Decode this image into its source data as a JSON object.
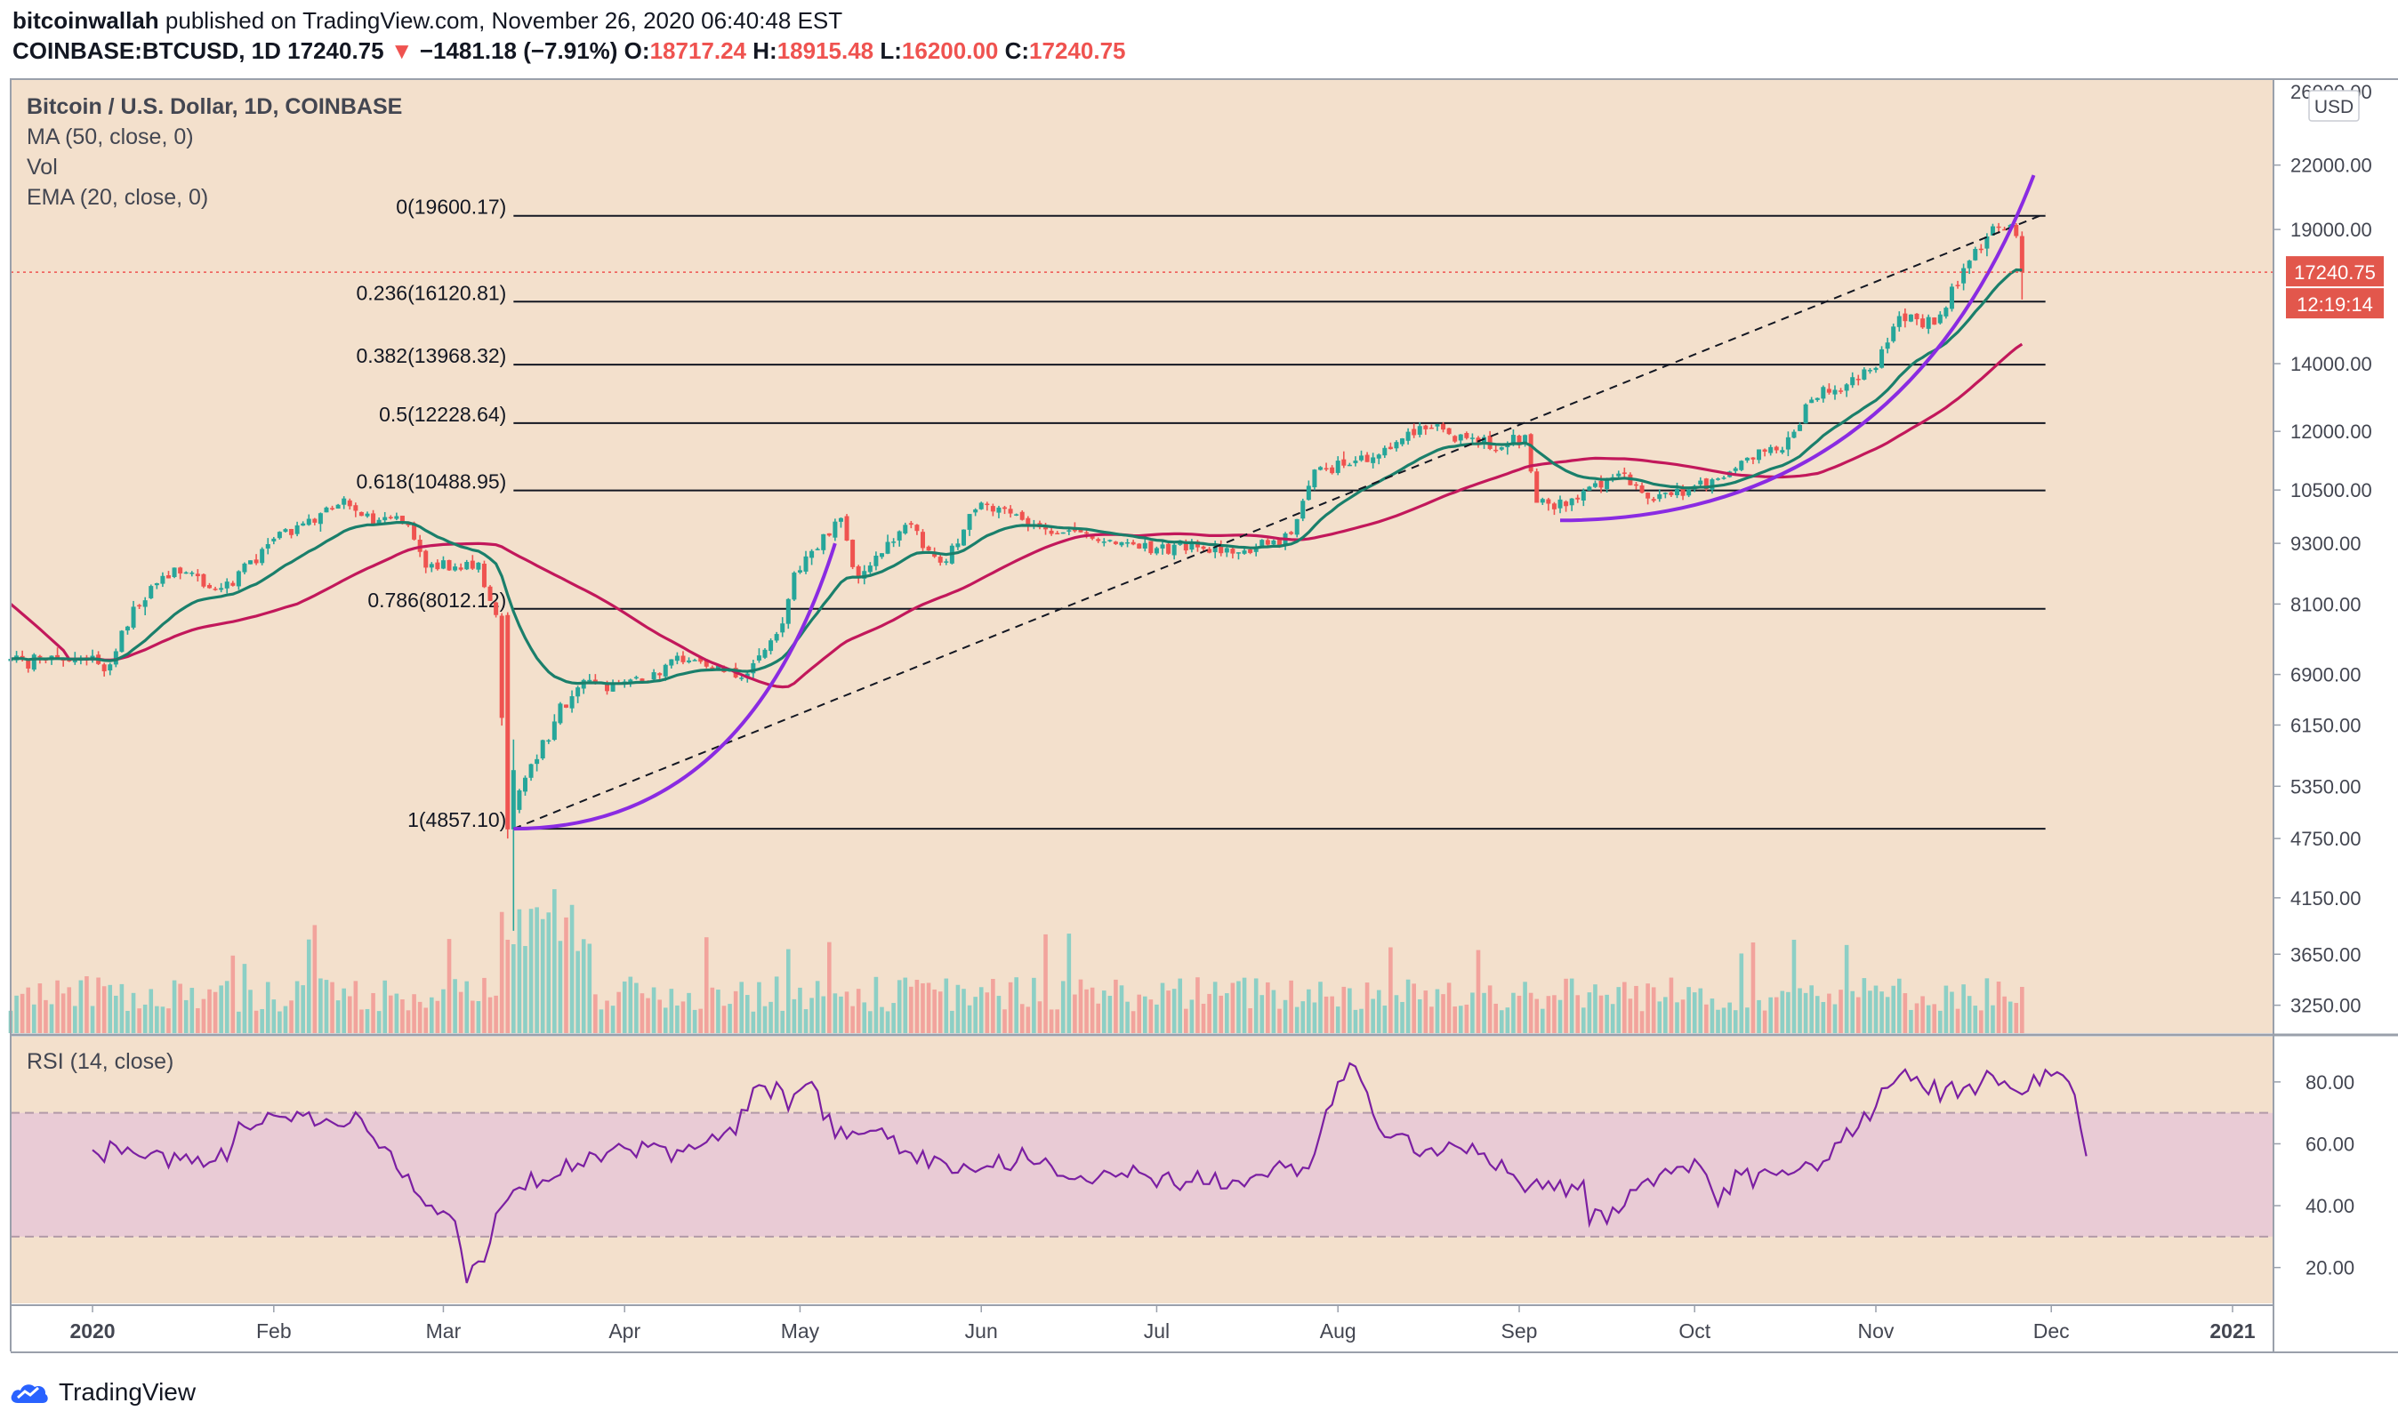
{
  "header": {
    "author": "bitcoinwallah",
    "published": " published on TradingView.com, November 26, 2020 06:40:48 EST",
    "symbol": "COINBASE:BTCUSD, 1D",
    "last": "17240.75",
    "change": "−1481.18 (−7.91%)",
    "o_label": "O:",
    "o": "18717.24",
    "h_label": "H:",
    "h": "18915.48",
    "l_label": "L:",
    "l": "16200.00",
    "c_label": "C:",
    "c": "17240.75"
  },
  "legend": {
    "title": "Bitcoin / U.S. Dollar, 1D, COINBASE",
    "ma": "MA (50, close, 0)",
    "vol": "Vol",
    "ema": "EMA (20, close, 0)"
  },
  "price_axis": {
    "currency": "USD",
    "ticks": [
      "26000.00",
      "22000.00",
      "19000.00",
      "17240.75",
      "14000.00",
      "12000.00",
      "10500.00",
      "9300.00",
      "8100.00",
      "6900.00",
      "6150.00",
      "5350.00",
      "4750.00",
      "4150.00",
      "3650.00",
      "3250.00"
    ],
    "tick_values": [
      26000,
      22000,
      19000,
      14000,
      12000,
      10500,
      9300,
      8100,
      6900,
      6150,
      5350,
      4750,
      4150,
      3650,
      3250
    ],
    "last_price_label": "17240.75",
    "countdown_label": "12:19:14"
  },
  "fib_levels": [
    {
      "label": "0(19600.17)",
      "value": 19600.17
    },
    {
      "label": "0.236(16120.81)",
      "value": 16120.81
    },
    {
      "label": "0.382(13968.32)",
      "value": 13968.32
    },
    {
      "label": "0.5(12228.64)",
      "value": 12228.64
    },
    {
      "label": "0.618(10488.95)",
      "value": 10488.95
    },
    {
      "label": "0.786(8012.12)",
      "value": 8012.12
    },
    {
      "label": "1(4857.10)",
      "value": 4857.1
    }
  ],
  "rsi": {
    "label": "RSI (14, close)",
    "ticks": [
      "80.00",
      "60.00",
      "40.00",
      "20.00"
    ],
    "tick_values": [
      80,
      60,
      40,
      20
    ],
    "band": [
      30,
      70
    ],
    "control": [
      [
        0,
        58
      ],
      [
        8,
        56
      ],
      [
        20,
        54
      ],
      [
        30,
        70
      ],
      [
        40,
        68
      ],
      [
        46,
        68
      ],
      [
        52,
        52
      ],
      [
        57,
        40
      ],
      [
        62,
        35
      ],
      [
        63,
        26
      ],
      [
        64,
        15
      ],
      [
        66,
        22
      ],
      [
        72,
        45
      ],
      [
        80,
        50
      ],
      [
        90,
        60
      ],
      [
        100,
        58
      ],
      [
        110,
        63
      ],
      [
        113,
        78
      ],
      [
        120,
        76
      ],
      [
        123,
        80
      ],
      [
        127,
        62
      ],
      [
        135,
        65
      ],
      [
        140,
        57
      ],
      [
        145,
        55
      ],
      [
        150,
        52
      ],
      [
        160,
        55
      ],
      [
        170,
        48
      ],
      [
        180,
        50
      ],
      [
        190,
        47
      ],
      [
        200,
        50
      ],
      [
        208,
        52
      ],
      [
        213,
        80
      ],
      [
        216,
        85
      ],
      [
        220,
        65
      ],
      [
        228,
        58
      ],
      [
        236,
        60
      ],
      [
        243,
        50
      ],
      [
        250,
        45
      ],
      [
        255,
        48
      ],
      [
        256,
        34
      ],
      [
        262,
        40
      ],
      [
        268,
        50
      ],
      [
        274,
        55
      ],
      [
        278,
        40
      ],
      [
        282,
        50
      ],
      [
        290,
        50
      ],
      [
        297,
        55
      ],
      [
        300,
        65
      ],
      [
        305,
        72
      ],
      [
        310,
        84
      ],
      [
        314,
        76
      ],
      [
        318,
        80
      ],
      [
        322,
        76
      ],
      [
        325,
        82
      ],
      [
        330,
        76
      ],
      [
        335,
        82
      ],
      [
        338,
        80
      ],
      [
        341,
        56
      ]
    ]
  },
  "time_axis": {
    "labels": [
      {
        "t": "2020",
        "d": 0,
        "bold": true
      },
      {
        "t": "Feb",
        "d": 31
      },
      {
        "t": "Mar",
        "d": 60
      },
      {
        "t": "Apr",
        "d": 91
      },
      {
        "t": "May",
        "d": 121
      },
      {
        "t": "Jun",
        "d": 152
      },
      {
        "t": "Jul",
        "d": 182
      },
      {
        "t": "Aug",
        "d": 213
      },
      {
        "t": "Sep",
        "d": 244
      },
      {
        "t": "Oct",
        "d": 274
      },
      {
        "t": "Nov",
        "d": 305
      },
      {
        "t": "Dec",
        "d": 335
      },
      {
        "t": "2021",
        "d": 366,
        "bold": true
      }
    ]
  },
  "chart_data": {
    "type": "candlestick",
    "title": "Bitcoin / U.S. Dollar, 1D, COINBASE",
    "price_scale": "log",
    "ylim": [
      3000,
      27000
    ],
    "x_range": [
      "2019-12-18",
      "2021-01-08"
    ],
    "candles_control": [
      {
        "date": "2019-12-18",
        "close": 7150
      },
      {
        "date": "2020-01-01",
        "close": 7200
      },
      {
        "date": "2020-01-03",
        "close": 6950
      },
      {
        "date": "2020-01-08",
        "close": 8050
      },
      {
        "date": "2020-01-15",
        "close": 8800
      },
      {
        "date": "2020-01-23",
        "close": 8400
      },
      {
        "date": "2020-02-01",
        "close": 9400
      },
      {
        "date": "2020-02-13",
        "close": 10300
      },
      {
        "date": "2020-02-16",
        "close": 9900
      },
      {
        "date": "2020-02-24",
        "close": 9700
      },
      {
        "date": "2020-02-27",
        "close": 8800
      },
      {
        "date": "2020-03-07",
        "close": 8900
      },
      {
        "date": "2020-03-10",
        "close": 7900
      },
      {
        "date": "2020-03-12",
        "close": 4850
      },
      {
        "date": "2020-03-14",
        "close": 5300
      },
      {
        "date": "2020-03-20",
        "close": 6200
      },
      {
        "date": "2020-03-24",
        "close": 6700
      },
      {
        "date": "2020-04-05",
        "close": 6800
      },
      {
        "date": "2020-04-10",
        "close": 7200
      },
      {
        "date": "2020-04-16",
        "close": 7000
      },
      {
        "date": "2020-04-21",
        "close": 6850
      },
      {
        "date": "2020-04-28",
        "close": 7750
      },
      {
        "date": "2020-04-30",
        "close": 8700
      },
      {
        "date": "2020-05-08",
        "close": 9850
      },
      {
        "date": "2020-05-11",
        "close": 8600
      },
      {
        "date": "2020-05-19",
        "close": 9700
      },
      {
        "date": "2020-05-25",
        "close": 8900
      },
      {
        "date": "2020-06-01",
        "close": 10200
      },
      {
        "date": "2020-06-10",
        "close": 9700
      },
      {
        "date": "2020-06-20",
        "close": 9400
      },
      {
        "date": "2020-07-01",
        "close": 9200
      },
      {
        "date": "2020-07-16",
        "close": 9150
      },
      {
        "date": "2020-07-24",
        "close": 9500
      },
      {
        "date": "2020-07-28",
        "close": 11000
      },
      {
        "date": "2020-08-02",
        "close": 11100
      },
      {
        "date": "2020-08-17",
        "close": 12100
      },
      {
        "date": "2020-08-28",
        "close": 11500
      },
      {
        "date": "2020-09-02",
        "close": 11900
      },
      {
        "date": "2020-09-04",
        "close": 10200
      },
      {
        "date": "2020-09-10",
        "close": 10300
      },
      {
        "date": "2020-09-18",
        "close": 10900
      },
      {
        "date": "2020-09-23",
        "close": 10300
      },
      {
        "date": "2020-10-01",
        "close": 10600
      },
      {
        "date": "2020-10-10",
        "close": 11300
      },
      {
        "date": "2020-10-16",
        "close": 11500
      },
      {
        "date": "2020-10-21",
        "close": 12900
      },
      {
        "date": "2020-10-31",
        "close": 13800
      },
      {
        "date": "2020-11-05",
        "close": 15600
      },
      {
        "date": "2020-11-11",
        "close": 15300
      },
      {
        "date": "2020-11-17",
        "close": 17700
      },
      {
        "date": "2020-11-20",
        "close": 18700
      },
      {
        "date": "2020-11-24",
        "close": 19200
      },
      {
        "date": "2020-11-25",
        "close": 18717.24
      },
      {
        "date": "2020-11-26",
        "open": 18717.24,
        "high": 18915.48,
        "low": 16200.0,
        "close": 17240.75
      }
    ],
    "series": [
      {
        "name": "MA (50, close, 0)",
        "color": "#c2185b"
      },
      {
        "name": "EMA (20, close, 0)",
        "color": "#1a7f6b"
      },
      {
        "name": "Vol"
      }
    ],
    "annotations": [
      {
        "type": "trendline",
        "style": "dashed",
        "from": [
          "2020-03-13",
          4857
        ],
        "to": [
          "2020-11-30",
          19700
        ]
      },
      {
        "type": "curve",
        "color": "#8a2be2",
        "from": [
          "2020-03-13",
          4857
        ],
        "to": [
          "2020-05-07",
          9300
        ]
      },
      {
        "type": "curve",
        "color": "#8a2be2",
        "from": [
          "2020-09-08",
          9800
        ],
        "to": [
          "2020-11-28",
          21500
        ]
      }
    ]
  },
  "colors": {
    "bg": "#f3e0cc",
    "up": "#26a69a",
    "down": "#ef5350",
    "ma": "#c2185b",
    "ema": "#1a7f6b",
    "curve": "#8a2be2",
    "rsi_line": "#7b1fa2",
    "rsi_band": "#e9cbd5",
    "last_price_badge": "#e2574c"
  },
  "footer": {
    "brand": "TradingView"
  }
}
